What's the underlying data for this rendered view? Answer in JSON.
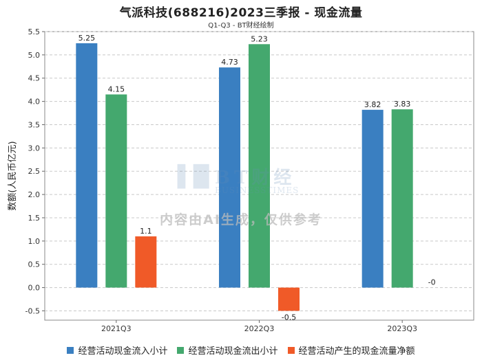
{
  "title": "气派科技(688216)2023三季报 - 现金流量",
  "subtitle": "Q1-Q3 - BT财经绘制",
  "watermark": {
    "brand": "BT财经",
    "sub": "BUSINESSTIMES",
    "disclaimer": "内容由AI生成，仅供参考"
  },
  "chart_data": {
    "type": "bar",
    "title": "气派科技(688216)2023三季报 - 现金流量",
    "subtitle": "Q1-Q3 - BT财经绘制",
    "xlabel": "",
    "ylabel": "数额(人民币亿元)",
    "categories": [
      "2021Q3",
      "2022Q3",
      "2023Q3"
    ],
    "series": [
      {
        "name": "经营活动现金流入小计",
        "color": "#3a7fc1",
        "values": [
          5.25,
          4.73,
          3.82
        ],
        "labels": [
          "5.25",
          "4.73",
          "3.82"
        ]
      },
      {
        "name": "经营活动现金流出小计",
        "color": "#44a86e",
        "values": [
          4.15,
          5.23,
          3.83
        ],
        "labels": [
          "4.15",
          "5.23",
          "3.83"
        ]
      },
      {
        "name": "经营活动产生的现金流量净额",
        "color": "#f05a28",
        "values": [
          1.1,
          -0.5,
          -0.0
        ],
        "labels": [
          "1.1",
          "-0.5",
          "-0"
        ]
      }
    ],
    "ylim": [
      -0.7,
      5.5
    ],
    "yticks": [
      "-0.5",
      "0.0",
      "0.5",
      "1.0",
      "1.5",
      "2.0",
      "2.5",
      "3.0",
      "3.5",
      "4.0",
      "4.5",
      "5.0",
      "5.5"
    ],
    "grid": true,
    "legend": "bottom"
  }
}
